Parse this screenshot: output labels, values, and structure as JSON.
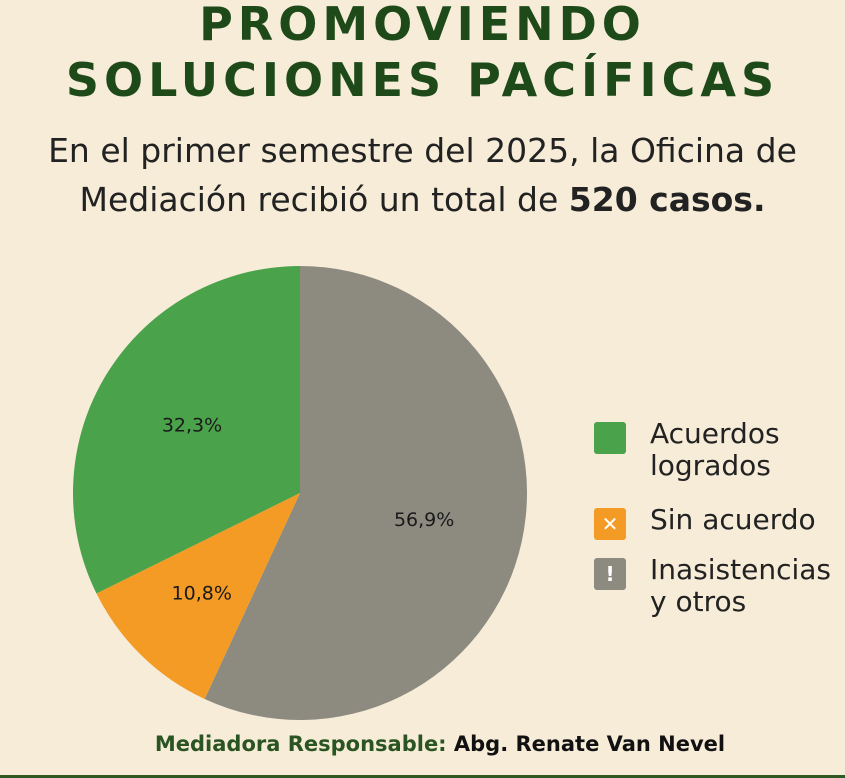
{
  "header": {
    "title_line1": "PROMOVIENDO",
    "title_line2": "SOLUCIONES PACÍFICAS",
    "subtitle_line1": "En el primer semestre del 2025, la Oficina de",
    "subtitle_line2_prefix": "Mediación recibió un total de ",
    "subtitle_line2_bold": "520 casos."
  },
  "chart_data": {
    "type": "pie",
    "slices": [
      {
        "label": "Inasistencias y otros",
        "value": 56.9,
        "value_label": "56,9%",
        "color": "#8d8a80"
      },
      {
        "label": "Sin acuerdo",
        "value": 10.8,
        "value_label": "10,8%",
        "color": "#f39b25"
      },
      {
        "label": "Acuerdos logrados",
        "value": 32.3,
        "value_label": "32,3%",
        "color": "#4aa24a"
      }
    ],
    "legend_placement": "right"
  },
  "legend": {
    "items": [
      {
        "label": "Acuerdos logrados",
        "color": "#4aa24a",
        "symbol": ""
      },
      {
        "label": "Sin acuerdo",
        "color": "#f39b25",
        "symbol": "✕"
      },
      {
        "label": "Inasistencias y otros",
        "color": "#8d8a80",
        "symbol": "!"
      }
    ]
  },
  "footer": {
    "role": "Mediadora Responsable:",
    "name": " Abg. Renate Van Nevel"
  }
}
